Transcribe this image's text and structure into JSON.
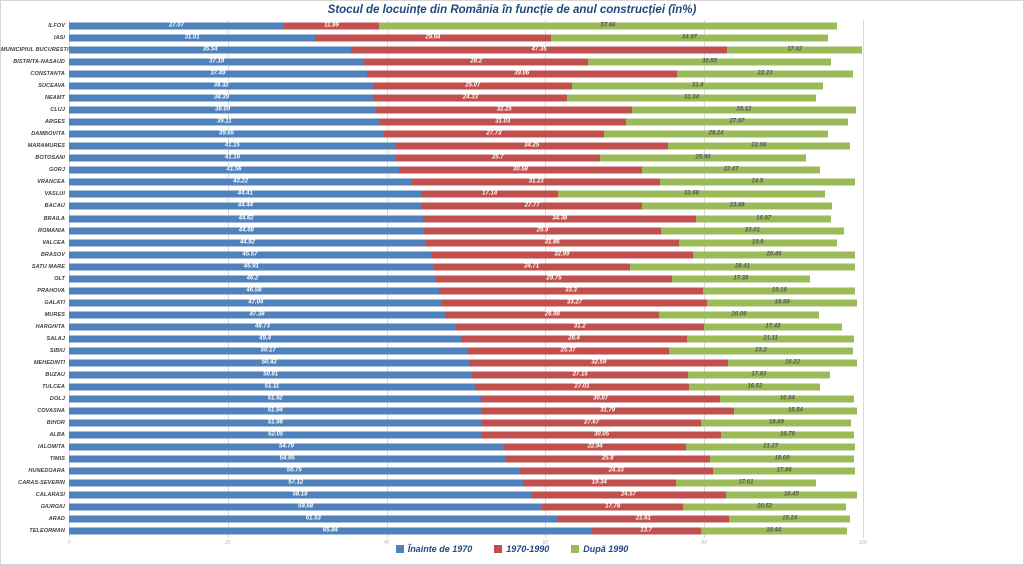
{
  "title": "Stocul de locuințe din România în funcție de anul construcției (în%)",
  "chart_data": {
    "type": "bar",
    "orientation": "horizontal-stacked",
    "title": "Stocul de locuințe din România în funcție de anul construcției (în%)",
    "xlim": [
      0,
      100
    ],
    "x_ticks": [
      0,
      20,
      40,
      60,
      80,
      100
    ],
    "grid": true,
    "legend_position": "bottom",
    "value_labels": true,
    "categories": [
      "ILFOV",
      "IASI",
      "MUNICIPIUL BUCURESTI",
      "BISTRITA-NASAUD",
      "CONSTANTA",
      "SUCEAVA",
      "NEAMT",
      "CLUJ",
      "ARGES",
      "DAMBOVITA",
      "MARAMURES",
      "BOTOSANI",
      "GORJ",
      "VRANCEA",
      "VASLUI",
      "BACAU",
      "BRAILA",
      "ROMANIA",
      "VALCEA",
      "BRASOV",
      "SATU MARE",
      "OLT",
      "PRAHOVA",
      "GALATI",
      "MURES",
      "HARGHITA",
      "SALAJ",
      "SIBIU",
      "MEHEDINTI",
      "BUZAU",
      "TULCEA",
      "DOLJ",
      "COVASNA",
      "BIHOR",
      "ALBA",
      "IALOMITA",
      "TIMIS",
      "HUNEDOARA",
      "CARAS-SEVERIN",
      "CALARASI",
      "GIURGIU",
      "ARAD",
      "TELEORMAN"
    ],
    "series": [
      {
        "name": "Înainte de 1970",
        "color": "#4f81bd",
        "values": [
          27.07,
          31.01,
          35.54,
          37.19,
          37.49,
          38.32,
          38.39,
          38.69,
          39.11,
          39.65,
          41.15,
          41.16,
          41.56,
          43.22,
          44.41,
          44.44,
          44.62,
          44.68,
          44.92,
          45.57,
          45.91,
          46.2,
          46.58,
          47.04,
          47.38,
          48.73,
          49.4,
          50.17,
          50.42,
          50.81,
          51.11,
          51.92,
          51.94,
          51.98,
          52.05,
          54.79,
          54.95,
          56.75,
          57.12,
          58.18,
          59.58,
          61.53,
          65.84
        ]
      },
      {
        "name": "1970-1990",
        "color": "#c0504d",
        "values": [
          11.99,
          29.64,
          47.35,
          28.2,
          39.06,
          25.07,
          24.33,
          32.25,
          31.03,
          27.73,
          34.25,
          25.7,
          30.58,
          31.23,
          17.14,
          27.77,
          34.38,
          29.9,
          31.86,
          32.99,
          24.71,
          29.75,
          33.3,
          33.27,
          26.98,
          31.2,
          28.4,
          25.37,
          32.59,
          27.15,
          27.01,
          30.07,
          31.79,
          27.67,
          30.05,
          22.94,
          25.8,
          24.33,
          19.34,
          24.57,
          17.78,
          21.61,
          13.7
        ]
      },
      {
        "name": "După 1990",
        "color": "#9bbb59",
        "values": [
          57.66,
          34.97,
          17.02,
          30.55,
          22.23,
          31.6,
          31.34,
          28.12,
          27.97,
          28.24,
          22.96,
          25.96,
          22.47,
          24.5,
          33.68,
          23.88,
          16.97,
          23.01,
          19.9,
          20.46,
          28.41,
          17.35,
          19.16,
          18.99,
          20.06,
          17.45,
          21.11,
          23.2,
          16.22,
          17.83,
          16.52,
          16.94,
          15.54,
          18.89,
          16.78,
          21.27,
          18.09,
          17.96,
          17.61,
          16.45,
          20.52,
          15.24,
          18.44
        ]
      }
    ]
  }
}
